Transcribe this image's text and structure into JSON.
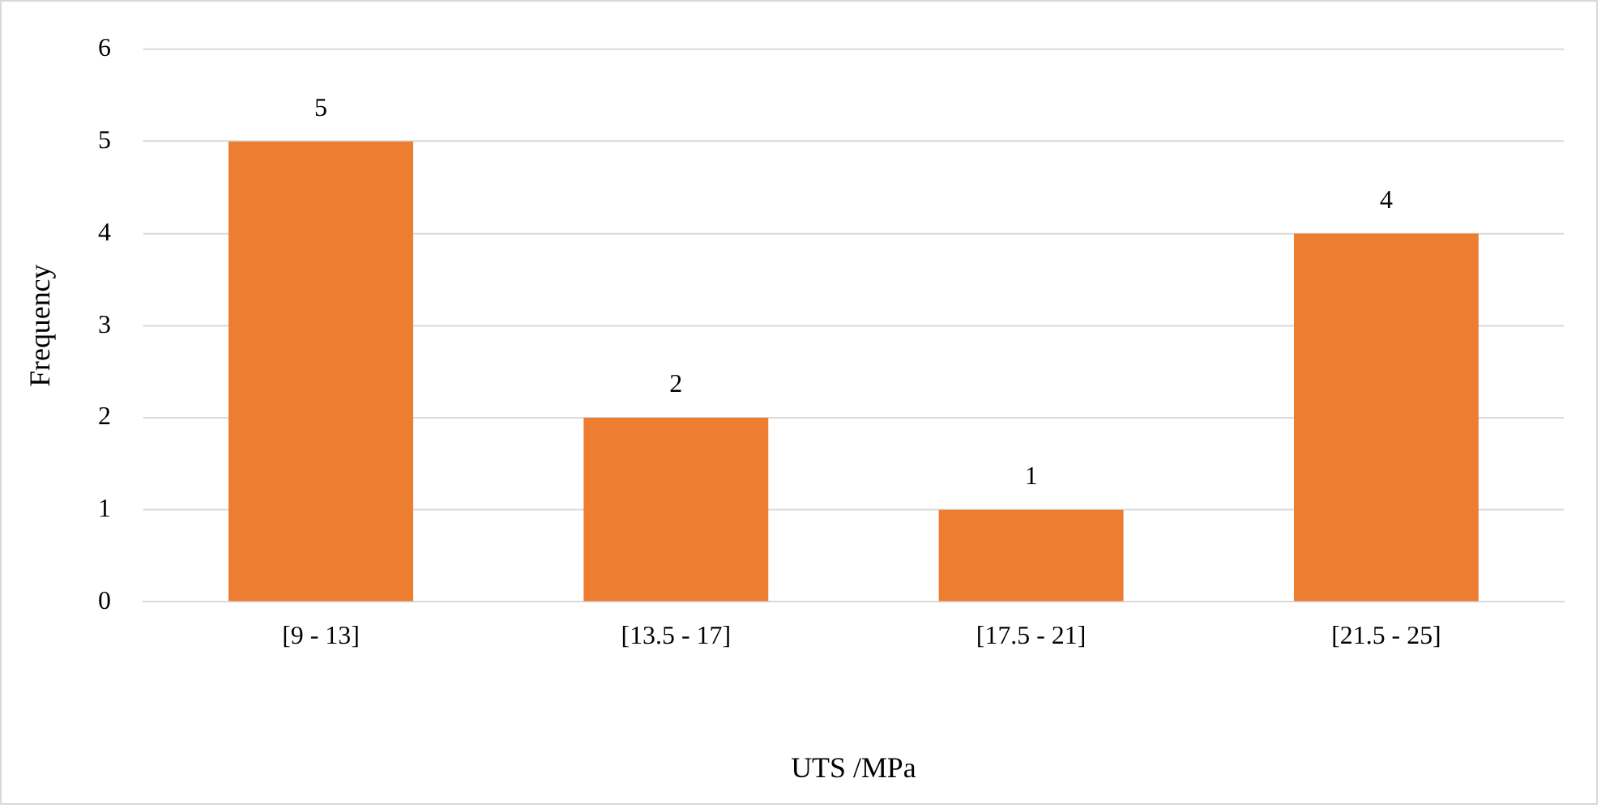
{
  "chart_data": {
    "type": "bar",
    "xlabel": "UTS /MPa",
    "ylabel": "Frequency",
    "categories": [
      "[9 - 13]",
      "[13.5 - 17]",
      "[17.5 - 21]",
      "[21.5 - 25]"
    ],
    "series": [
      {
        "color": "#ed7d31",
        "values": [
          5,
          2,
          1,
          4
        ]
      }
    ],
    "ylim": [
      0,
      6
    ],
    "yticks": [
      0,
      1,
      2,
      3,
      4,
      5,
      6
    ],
    "grid": "y",
    "data_labels": true,
    "legend": false
  }
}
